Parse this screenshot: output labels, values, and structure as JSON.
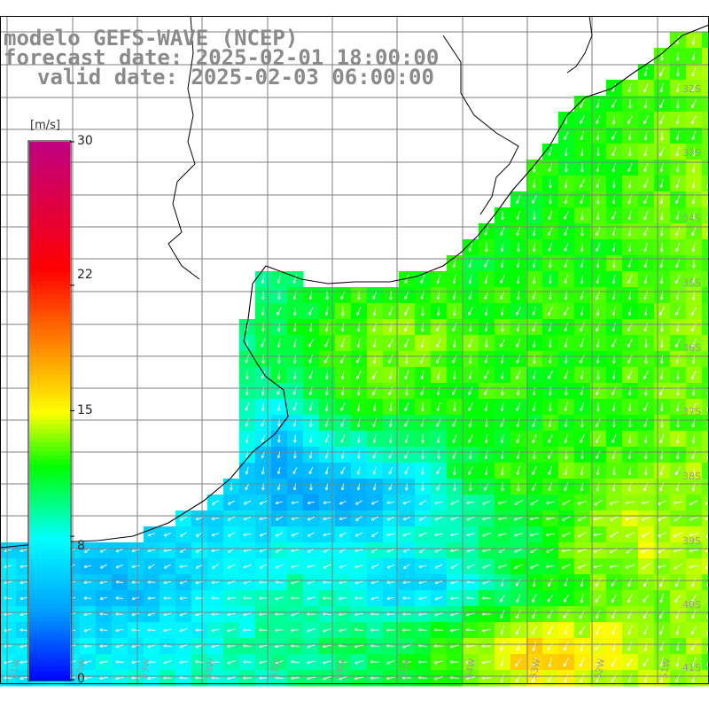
{
  "title": {
    "line1": "modelo GEFS-WAVE (NCEP)",
    "line2": "forecast date: 2025-02-01 18:00:00",
    "line3": "valid date: 2025-02-03 06:00:00"
  },
  "colorbar": {
    "unit": "[m/s]",
    "labels": [
      "30",
      "22",
      "15",
      "8",
      "0"
    ],
    "values": [
      30,
      22,
      15,
      8,
      0
    ],
    "range": [
      0,
      30
    ],
    "stops": [
      "#0000ff",
      "#00a0ff",
      "#00ffff",
      "#00ff00",
      "#ffff00",
      "#ff8000",
      "#ff0000",
      "#c00080"
    ]
  },
  "lat_labels": [
    "32S",
    "33S",
    "34S",
    "35S",
    "36S",
    "37S",
    "38S",
    "39S",
    "40S",
    "41S"
  ],
  "lon_labels": [
    "61W",
    "60W",
    "59W",
    "58W",
    "57W",
    "56W",
    "55W",
    "54W",
    "53W",
    "52W",
    "51W"
  ],
  "colors": {
    "land": "#ffffff",
    "coast": "#000000",
    "grid": "#7f7f7f",
    "arrow": "#ffffff",
    "title": "#8a8a8a"
  }
}
